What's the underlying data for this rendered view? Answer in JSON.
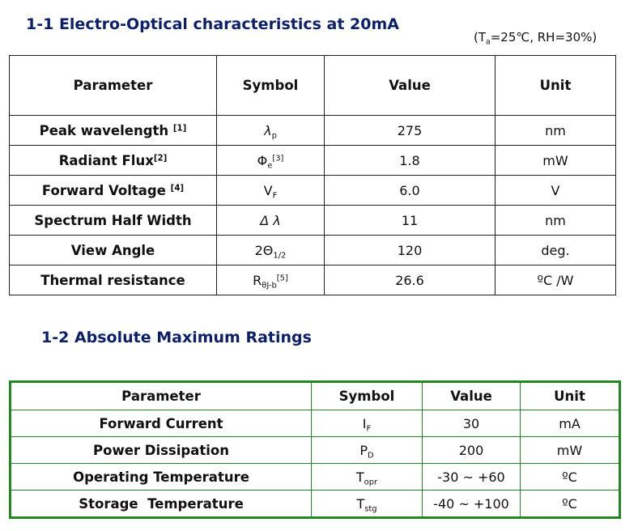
{
  "section1": {
    "title": "1-1  Electro-Optical characteristics at 20mA",
    "conditions": {
      "open": "(T",
      "sub": "a",
      "rest": "=25℃, RH=30%)"
    },
    "headers": [
      "Parameter",
      "Symbol",
      "Value",
      "Unit"
    ],
    "rows": [
      {
        "param": "Peak wavelength ",
        "param_note": "[1]",
        "sym_main": "λ",
        "sym_sub": "p",
        "sym_sup": "",
        "value": "275",
        "unit": "nm"
      },
      {
        "param": "Radiant Flux",
        "param_note": "[2]",
        "sym_main": "Φ",
        "sym_sub": "e",
        "sym_sup": "[3]",
        "value": "1.8",
        "unit": "mW"
      },
      {
        "param": "Forward Voltage ",
        "param_note": "[4]",
        "sym_main": "V",
        "sym_sub": "F",
        "sym_sup": "",
        "value": "6.0",
        "unit": "V"
      },
      {
        "param": "Spectrum Half Width",
        "param_note": "",
        "sym_main": "Δ λ",
        "sym_sub": "",
        "sym_sup": "",
        "value": "11",
        "unit": "nm"
      },
      {
        "param": "View Angle",
        "param_note": "",
        "sym_main": "2Θ",
        "sym_sub": "1/2",
        "sym_sup": "",
        "value": "120",
        "unit": "deg."
      },
      {
        "param": "Thermal resistance",
        "param_note": "",
        "sym_main": "R",
        "sym_sub": "θJ-b",
        "sym_sup": "[5]",
        "value": "26.6",
        "unit": "ºC /W"
      }
    ]
  },
  "section2": {
    "title": "1-2  Absolute Maximum Ratings",
    "headers": [
      "Parameter",
      "Symbol",
      "Value",
      "Unit"
    ],
    "rows": [
      {
        "param": "Forward Current",
        "sym_main": "I",
        "sym_sub": "F",
        "value": "30",
        "unit": "mA"
      },
      {
        "param": "Power Dissipation",
        "sym_main": "P",
        "sym_sub": "D",
        "value": "200",
        "unit": "mW"
      },
      {
        "param": "Operating Temperature",
        "sym_main": "T",
        "sym_sub": "opr",
        "value": "-30 ~ +60",
        "unit": "ºC"
      },
      {
        "param": "Storage  Temperature",
        "sym_main": "T",
        "sym_sub": "stg",
        "value": "-40 ~ +100",
        "unit": "ºC"
      }
    ]
  }
}
